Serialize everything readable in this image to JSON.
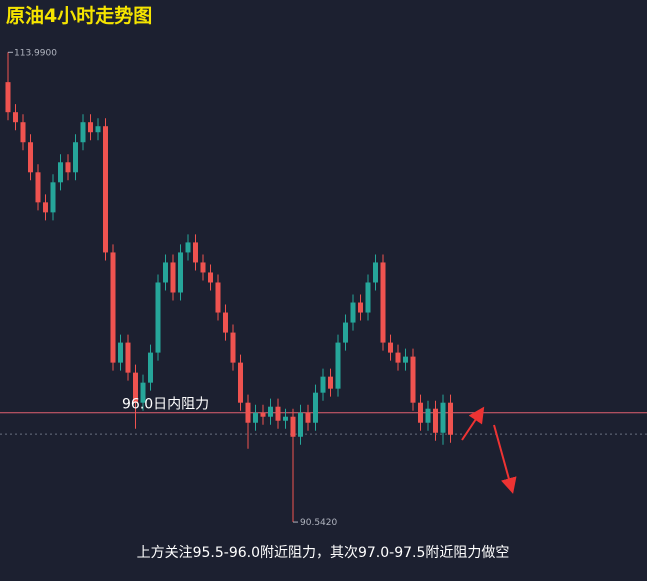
{
  "chart_data": {
    "type": "candlestick",
    "title": "原油4小时走势图",
    "caption": "上方关注95.5-96.0附近阻力，其次97.0-97.5附近阻力做空",
    "up_color": "#26a69a",
    "down_color": "#ef5350",
    "ylim": [
      87.6,
      116.6
    ],
    "open": [
      112.5,
      111.0,
      110.5,
      109.5,
      108.0,
      106.5,
      106.0,
      107.5,
      108.5,
      108.0,
      109.5,
      110.5,
      110.0,
      110.3,
      104.0,
      98.5,
      99.5,
      98.0,
      96.5,
      97.5,
      99.0,
      102.5,
      103.5,
      102.0,
      104.0,
      104.5,
      103.5,
      103.0,
      102.5,
      101.0,
      100.0,
      98.5,
      96.5,
      95.5,
      96.0,
      95.8,
      96.3,
      95.6,
      95.8,
      94.8,
      96.0,
      95.5,
      97.0,
      97.8,
      97.2,
      99.5,
      100.5,
      101.5,
      101.0,
      102.5,
      103.5,
      99.5,
      99.0,
      98.5,
      98.8,
      96.5,
      95.5,
      96.2,
      95.0,
      96.5
    ],
    "high": [
      113.99,
      111.4,
      110.9,
      109.9,
      108.4,
      106.9,
      107.9,
      108.9,
      108.9,
      109.9,
      110.9,
      110.9,
      110.7,
      110.7,
      104.4,
      99.9,
      99.9,
      98.4,
      97.9,
      99.4,
      102.9,
      103.9,
      103.9,
      104.4,
      104.9,
      104.9,
      103.9,
      103.4,
      102.9,
      101.4,
      100.4,
      98.9,
      96.9,
      96.4,
      96.4,
      96.7,
      96.7,
      96.2,
      96.2,
      96.4,
      96.4,
      97.4,
      98.2,
      98.2,
      99.9,
      100.9,
      101.9,
      101.9,
      102.9,
      103.9,
      103.9,
      99.9,
      99.4,
      99.2,
      99.2,
      96.9,
      96.6,
      96.6,
      96.9,
      96.9
    ],
    "low": [
      110.6,
      110.1,
      109.1,
      107.6,
      106.1,
      105.6,
      105.6,
      107.1,
      107.6,
      107.6,
      109.1,
      109.6,
      109.6,
      103.6,
      98.1,
      98.1,
      97.6,
      95.2,
      96.1,
      97.1,
      98.6,
      102.1,
      101.6,
      101.6,
      103.6,
      103.1,
      102.6,
      102.1,
      100.6,
      99.6,
      98.1,
      96.1,
      94.2,
      95.1,
      95.4,
      95.4,
      95.2,
      95.2,
      90.542,
      94.4,
      95.1,
      95.1,
      96.6,
      96.8,
      96.8,
      99.1,
      100.1,
      100.6,
      100.6,
      102.1,
      99.1,
      98.6,
      98.1,
      98.1,
      96.1,
      95.1,
      95.1,
      94.6,
      94.4,
      94.5
    ],
    "close": [
      111.0,
      110.5,
      109.5,
      108.0,
      106.5,
      106.0,
      107.5,
      108.5,
      108.0,
      109.5,
      110.5,
      110.0,
      110.3,
      104.0,
      98.5,
      99.5,
      98.0,
      96.5,
      97.5,
      99.0,
      102.5,
      103.5,
      102.0,
      104.0,
      104.5,
      103.5,
      103.0,
      102.5,
      101.0,
      100.0,
      98.5,
      96.5,
      95.5,
      96.0,
      95.8,
      96.3,
      95.6,
      95.8,
      94.8,
      96.0,
      95.5,
      97.0,
      97.8,
      97.2,
      99.5,
      100.5,
      101.5,
      101.0,
      102.5,
      103.5,
      99.5,
      99.0,
      98.5,
      98.8,
      96.5,
      95.5,
      96.2,
      95.0,
      96.5,
      94.9
    ],
    "max_label": {
      "value": 113.99,
      "label": "113.9900"
    },
    "min_label": {
      "value": 90.542,
      "label": "90.5420"
    },
    "resistance": {
      "value": 96.0,
      "label": "96.0日内阻力",
      "color": "#e06070"
    },
    "dashed_line": 94.93
  }
}
